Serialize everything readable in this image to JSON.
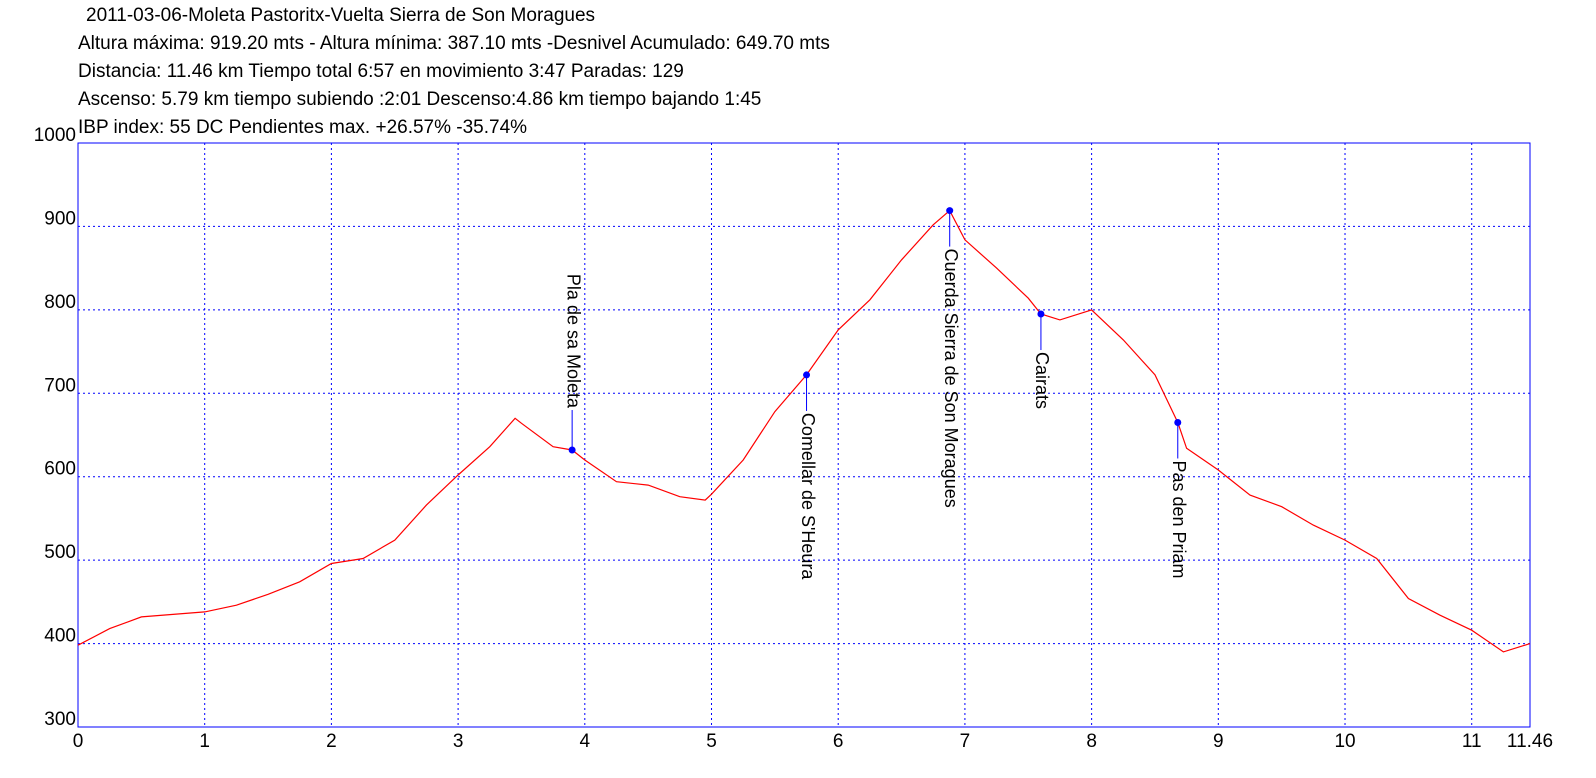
{
  "chart_data": {
    "type": "line",
    "title": "2011-03-06-Moleta Pastoritx-Vuelta Sierra de Son Moragues",
    "subtitle": [
      "Altura máxima: 919.20 mts - Altura mínima: 387.10 mts -Desnivel Acumulado: 649.70 mts",
      "Distancia: 11.46 km  Tiempo total 6:57  en movimiento 3:47 Paradas: 129",
      "Ascenso: 5.79 km  tiempo subiendo :2:01  Descenso:4.86 km tiempo bajando 1:45",
      " IBP index: 55 DC Pendientes max. +26.57%  -35.74%"
    ],
    "x": [
      0,
      0.25,
      0.5,
      0.75,
      1,
      1.25,
      1.5,
      1.75,
      2,
      2.25,
      2.5,
      2.75,
      3,
      3.25,
      3.45,
      3.5,
      3.75,
      3.9,
      4,
      4.25,
      4.5,
      4.75,
      4.95,
      5,
      5.25,
      5.5,
      5.75,
      6,
      6.25,
      6.5,
      6.75,
      6.88,
      7,
      7.25,
      7.5,
      7.6,
      7.75,
      8,
      8.25,
      8.5,
      8.68,
      8.75,
      9,
      9.25,
      9.5,
      9.75,
      10,
      10.25,
      10.5,
      10.75,
      11,
      11.25,
      11.46
    ],
    "series": [
      {
        "color": "#ff0000",
        "values": [
          398,
          418,
          432,
          435,
          438,
          446,
          459,
          474,
          496,
          502,
          524,
          566,
          602,
          636,
          670,
          664,
          636,
          632,
          620,
          594,
          590,
          576,
          572,
          579,
          620,
          678,
          722,
          776,
          812,
          860,
          902,
          919,
          884,
          850,
          814,
          795,
          788,
          800,
          764,
          722,
          665,
          634,
          608,
          578,
          564,
          542,
          524,
          502,
          454,
          434,
          416,
          390,
          400
        ]
      }
    ],
    "annotations": [
      {
        "label": "Pla de sa Moleta",
        "x": 3.9,
        "y": 632
      },
      {
        "label": "Comellar de S'Heura",
        "x": 5.75,
        "y": 722
      },
      {
        "label": "Cuerda Sierra de Son Moragues",
        "x": 6.88,
        "y": 919
      },
      {
        "label": "Cairats",
        "x": 7.6,
        "y": 795
      },
      {
        "label": "Pas den Priam",
        "x": 8.68,
        "y": 665
      }
    ],
    "annotation_color": "#0000ff",
    "xlim": [
      0,
      11.46
    ],
    "xticks": [
      0,
      1,
      2,
      3,
      4,
      5,
      6,
      7,
      8,
      9,
      10,
      11,
      11.46
    ],
    "ylim": [
      300,
      1000
    ],
    "yticks": [
      300,
      400,
      500,
      600,
      700,
      800,
      900,
      1000
    ],
    "grid": true
  }
}
